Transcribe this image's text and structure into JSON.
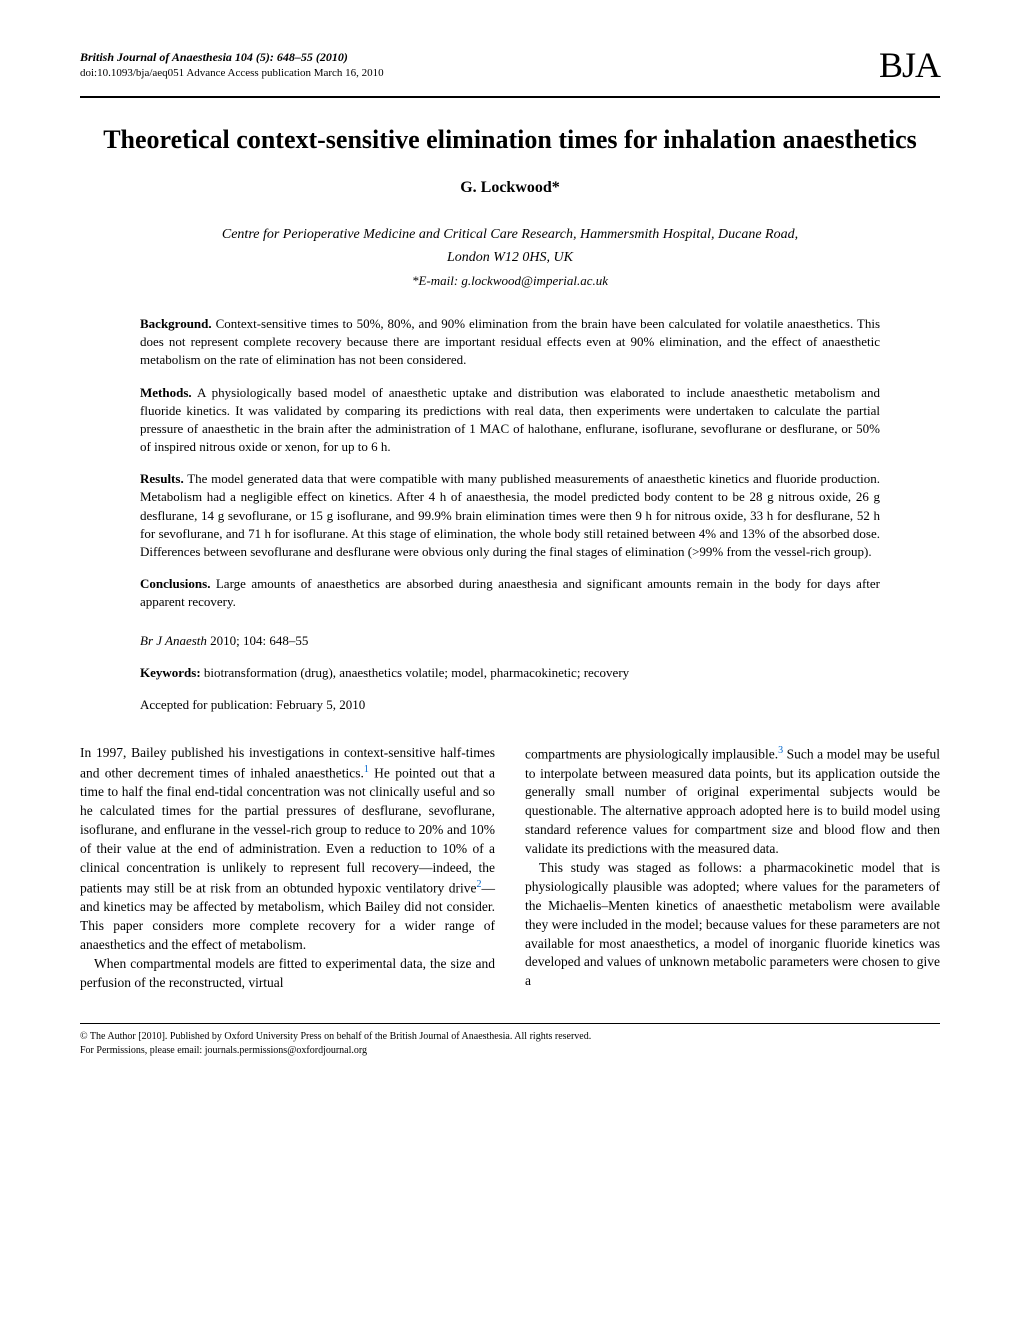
{
  "header": {
    "journal_citation": "British Journal of Anaesthesia 104 (5): 648–55 (2010)",
    "doi_line": "doi:10.1093/bja/aeq051   Advance Access publication March 16, 2010",
    "logo": "BJA"
  },
  "title": "Theoretical context-sensitive elimination times for inhalation anaesthetics",
  "author": "G. Lockwood*",
  "affiliation_line1": "Centre for Perioperative Medicine and Critical Care Research, Hammersmith Hospital, Ducane Road,",
  "affiliation_line2": "London W12 0HS, UK",
  "email": "*E-mail: g.lockwood@imperial.ac.uk",
  "abstract": {
    "background": {
      "label": "Background.",
      "text": " Context-sensitive times to 50%, 80%, and 90% elimination from the brain have been calculated for volatile anaesthetics. This does not represent complete recovery because there are important residual effects even at 90% elimination, and the effect of anaesthetic metabolism on the rate of elimination has not been considered."
    },
    "methods": {
      "label": "Methods.",
      "text": " A physiologically based model of anaesthetic uptake and distribution was elaborated to include anaesthetic metabolism and fluoride kinetics. It was validated by comparing its predictions with real data, then experiments were undertaken to calculate the partial pressure of anaesthetic in the brain after the administration of 1 MAC of halothane, enflurane, isoflurane, sevoflurane or desflurane, or 50% of inspired nitrous oxide or xenon, for up to 6 h."
    },
    "results": {
      "label": "Results.",
      "text": " The model generated data that were compatible with many published measurements of anaesthetic kinetics and fluoride production. Metabolism had a negligible effect on kinetics. After 4 h of anaesthesia, the model predicted body content to be 28 g nitrous oxide, 26 g desflurane, 14 g sevoflurane, or 15 g isoflurane, and 99.9% brain elimination times were then 9 h for nitrous oxide, 33 h for desflurane, 52 h for sevoflurane, and 71 h for isoflurane. At this stage of elimination, the whole body still retained between 4% and 13% of the absorbed dose. Differences between sevoflurane and desflurane were obvious only during the final stages of elimination (>99% from the vessel-rich group)."
    },
    "conclusions": {
      "label": "Conclusions.",
      "text": " Large amounts of anaesthetics are absorbed during anaesthesia and significant amounts remain in the body for days after apparent recovery."
    }
  },
  "citation": {
    "journal": "Br J Anaesth",
    "detail": " 2010; 104: 648–55"
  },
  "keywords": {
    "label": "Keywords:",
    "text": " biotransformation (drug), anaesthetics volatile; model, pharmacokinetic; recovery"
  },
  "accepted": "Accepted for publication: February 5, 2010",
  "body": {
    "col1_p1_a": "In 1997, Bailey published his investigations in context-sensitive half-times and other decrement times of inhaled anaesthetics.",
    "col1_p1_b": " He pointed out that a time to half the final end-tidal concentration was not clinically useful and so he calculated times for the partial pressures of desflurane, sevoflurane, isoflurane, and enflurane in the vessel-rich group to reduce to 20% and 10% of their value at the end of administration. Even a reduction to 10% of a clinical concentration is unlikely to represent full recovery—indeed, the patients may still be at risk from an obtunded hypoxic ventilatory drive",
    "col1_p1_c": "—and kinetics may be affected by metabolism, which Bailey did not consider. This paper considers more complete recovery for a wider range of anaesthetics and the effect of metabolism.",
    "col1_p2": "When compartmental models are fitted to experimental data, the size and perfusion of the reconstructed, virtual",
    "col2_p1_a": "compartments are physiologically implausible.",
    "col2_p1_b": " Such a model may be useful to interpolate between measured data points, but its application outside the generally small number of original experimental subjects would be questionable. The alternative approach adopted here is to build model using standard reference values for compartment size and blood flow and then validate its predictions with the measured data.",
    "col2_p2": "This study was staged as follows: a pharmacokinetic model that is physiologically plausible was adopted; where values for the parameters of the Michaelis–Menten kinetics of anaesthetic metabolism were available they were included in the model; because values for these parameters are not available for most anaesthetics, a model of inorganic fluoride kinetics was developed and values of unknown metabolic parameters were chosen to give a",
    "ref1": "1",
    "ref2": "2",
    "ref3": "3"
  },
  "footer": {
    "copyright": "© The Author [2010]. Published by Oxford University Press on behalf of the British Journal of Anaesthesia. All rights reserved.",
    "permissions": "For Permissions, please email: journals.permissions@oxfordjournal.org"
  }
}
